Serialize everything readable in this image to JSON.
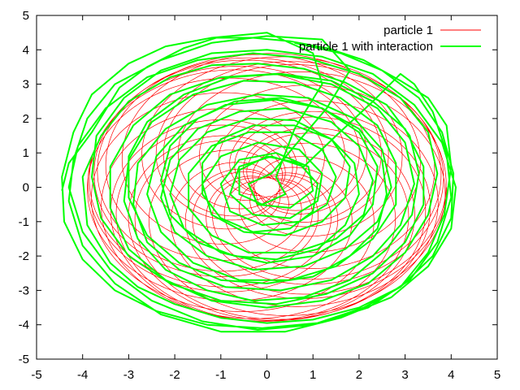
{
  "chart_data": {
    "type": "line",
    "title": "",
    "xlabel": "",
    "ylabel": "",
    "xlim": [
      -5,
      5
    ],
    "ylim": [
      -5,
      5
    ],
    "xticks": [
      "-5",
      "-4",
      "-3",
      "-2",
      "-1",
      "0",
      "1",
      "2",
      "3",
      "4",
      "5"
    ],
    "yticks": [
      "-5",
      "-4",
      "-3",
      "-2",
      "-1",
      "0",
      "1",
      "2",
      "3",
      "4",
      "5"
    ],
    "grid": false,
    "legend_position": "top-right",
    "series": [
      {
        "name": "particle 1",
        "color": "#ff0000",
        "style": "thin rosette orbit",
        "params": {
          "ax": 3.9,
          "ay": 3.9,
          "bx": 0.25,
          "by": 0.25,
          "fast": 19.5,
          "slow": 1.0,
          "turns": 32
        }
      },
      {
        "name": "particle 1 with interaction",
        "color": "#00ff00",
        "style": "thick irregular orbit",
        "points": [
          [
            -4.45,
            -0.1
          ],
          [
            -4.3,
            0.7
          ],
          [
            -3.8,
            1.6
          ],
          [
            -3.2,
            2.9
          ],
          [
            -2.6,
            3.5
          ],
          [
            -1.8,
            4.05
          ],
          [
            -1.1,
            4.35
          ],
          [
            -0.3,
            4.35
          ],
          [
            0.5,
            4.25
          ],
          [
            1.3,
            4.05
          ],
          [
            2.1,
            3.7
          ],
          [
            2.9,
            3.1
          ],
          [
            3.5,
            2.6
          ],
          [
            3.9,
            1.8
          ],
          [
            4.0,
            0.6
          ],
          [
            3.85,
            -0.8
          ],
          [
            3.5,
            -1.9
          ],
          [
            2.9,
            -2.9
          ],
          [
            2.0,
            -3.5
          ],
          [
            1.0,
            -3.85
          ],
          [
            0.0,
            -3.95
          ],
          [
            -1.0,
            -3.8
          ],
          [
            -2.0,
            -3.4
          ],
          [
            -2.8,
            -2.9
          ],
          [
            -3.4,
            -2.2
          ],
          [
            -3.9,
            -1.1
          ],
          [
            -4.0,
            0.3
          ],
          [
            -3.6,
            1.5
          ],
          [
            -3.0,
            2.5
          ],
          [
            -2.1,
            3.2
          ],
          [
            -1.2,
            3.55
          ],
          [
            -0.2,
            3.6
          ],
          [
            0.8,
            3.45
          ],
          [
            1.7,
            3.05
          ],
          [
            2.6,
            2.4
          ],
          [
            3.1,
            1.5
          ],
          [
            3.3,
            0.4
          ],
          [
            3.15,
            -0.8
          ],
          [
            2.6,
            -1.8
          ],
          [
            1.8,
            -2.7
          ],
          [
            0.8,
            -3.2
          ],
          [
            -0.3,
            -3.3
          ],
          [
            -1.3,
            -3.0
          ],
          [
            -2.2,
            -2.4
          ],
          [
            -2.8,
            -1.5
          ],
          [
            -3.1,
            -0.4
          ],
          [
            -3.0,
            0.8
          ],
          [
            -2.5,
            1.9
          ],
          [
            -1.6,
            2.7
          ],
          [
            -0.5,
            3.1
          ],
          [
            0.6,
            3.05
          ],
          [
            1.6,
            2.6
          ],
          [
            2.4,
            1.8
          ],
          [
            2.8,
            0.7
          ],
          [
            2.8,
            -0.5
          ],
          [
            2.3,
            -1.5
          ],
          [
            1.5,
            -2.3
          ],
          [
            0.5,
            -2.7
          ],
          [
            -0.6,
            -2.7
          ],
          [
            -1.6,
            -2.2
          ],
          [
            -2.3,
            -1.3
          ],
          [
            -2.6,
            -0.2
          ],
          [
            -2.4,
            0.9
          ],
          [
            -1.8,
            1.8
          ],
          [
            -0.9,
            2.4
          ],
          [
            0.2,
            2.55
          ],
          [
            1.2,
            2.3
          ],
          [
            2.0,
            1.6
          ],
          [
            2.4,
            0.6
          ],
          [
            2.3,
            -0.5
          ],
          [
            1.8,
            -1.4
          ],
          [
            1.0,
            -2.0
          ],
          [
            0.0,
            -2.2
          ],
          [
            -1.0,
            -1.9
          ],
          [
            -1.8,
            -1.2
          ],
          [
            -2.1,
            -0.2
          ],
          [
            -1.9,
            0.8
          ],
          [
            -1.3,
            1.6
          ],
          [
            -0.4,
            2.0
          ],
          [
            0.6,
            1.95
          ],
          [
            1.4,
            1.4
          ],
          [
            1.8,
            0.6
          ],
          [
            1.7,
            -0.3
          ],
          [
            1.2,
            -1.0
          ],
          [
            0.4,
            -1.4
          ],
          [
            -0.5,
            -1.3
          ],
          [
            -1.2,
            -0.8
          ],
          [
            -1.4,
            0.1
          ],
          [
            -1.0,
            0.9
          ],
          [
            -0.2,
            1.3
          ],
          [
            0.7,
            1.1
          ],
          [
            1.2,
            0.4
          ],
          [
            1.1,
            -0.4
          ],
          [
            0.5,
            -0.9
          ],
          [
            -0.3,
            -0.8
          ],
          [
            -0.8,
            -0.2
          ],
          [
            -0.6,
            0.6
          ],
          [
            0.1,
            0.9
          ],
          [
            0.8,
            0.6
          ],
          [
            1.5,
            1.5
          ],
          [
            2.3,
            2.5
          ],
          [
            2.9,
            3.3
          ],
          [
            3.2,
            3.0
          ],
          [
            3.6,
            2.2
          ],
          [
            3.9,
            1.0
          ],
          [
            4.0,
            -0.3
          ],
          [
            3.7,
            -1.6
          ],
          [
            3.1,
            -2.7
          ],
          [
            2.2,
            -3.5
          ],
          [
            1.0,
            -4.0
          ],
          [
            -0.2,
            -4.15
          ],
          [
            -1.4,
            -3.9
          ],
          [
            -2.5,
            -3.3
          ],
          [
            -3.4,
            -2.4
          ],
          [
            -4.0,
            -1.3
          ],
          [
            -4.3,
            0.0
          ],
          [
            -4.1,
            1.2
          ],
          [
            -3.5,
            2.3
          ],
          [
            -2.6,
            3.2
          ],
          [
            -1.5,
            3.7
          ],
          [
            -0.3,
            3.9
          ],
          [
            0.9,
            3.75
          ],
          [
            2.0,
            3.3
          ],
          [
            2.9,
            2.6
          ],
          [
            3.5,
            1.6
          ],
          [
            3.7,
            0.4
          ],
          [
            3.5,
            -0.8
          ],
          [
            3.0,
            -1.9
          ],
          [
            2.2,
            -2.8
          ],
          [
            1.2,
            -3.3
          ],
          [
            0.0,
            -3.5
          ],
          [
            -1.2,
            -3.3
          ],
          [
            -2.2,
            -2.7
          ],
          [
            -3.0,
            -1.8
          ],
          [
            -3.4,
            -0.6
          ],
          [
            -3.4,
            0.6
          ],
          [
            -2.9,
            1.8
          ],
          [
            -2.1,
            2.7
          ],
          [
            -1.0,
            3.2
          ],
          [
            0.2,
            3.3
          ],
          [
            1.4,
            3.0
          ],
          [
            2.4,
            2.3
          ],
          [
            3.0,
            1.3
          ],
          [
            3.2,
            0.1
          ],
          [
            2.9,
            -1.1
          ],
          [
            2.3,
            -2.0
          ],
          [
            1.4,
            -2.7
          ],
          [
            0.3,
            -3.0
          ],
          [
            -0.9,
            -2.9
          ],
          [
            -1.9,
            -2.4
          ],
          [
            -2.6,
            -1.6
          ],
          [
            -2.9,
            -0.5
          ],
          [
            -2.8,
            0.7
          ],
          [
            -2.2,
            1.7
          ],
          [
            -1.3,
            2.4
          ],
          [
            -0.2,
            2.7
          ],
          [
            0.9,
            2.6
          ],
          [
            1.9,
            2.0
          ],
          [
            2.5,
            1.1
          ],
          [
            2.7,
            0.0
          ],
          [
            2.4,
            -1.0
          ],
          [
            1.7,
            -1.8
          ],
          [
            0.8,
            -2.3
          ],
          [
            -0.3,
            -2.4
          ],
          [
            -1.3,
            -2.0
          ],
          [
            -2.0,
            -1.3
          ],
          [
            -2.3,
            -0.3
          ],
          [
            -2.1,
            0.8
          ],
          [
            -1.5,
            1.7
          ],
          [
            -0.6,
            2.2
          ],
          [
            0.4,
            2.3
          ],
          [
            1.4,
            1.9
          ],
          [
            2.0,
            1.2
          ],
          [
            2.3,
            0.2
          ],
          [
            2.1,
            -0.8
          ],
          [
            1.5,
            -1.5
          ],
          [
            0.6,
            -1.9
          ],
          [
            -0.4,
            -1.9
          ],
          [
            -1.2,
            -1.4
          ],
          [
            -1.7,
            -0.6
          ],
          [
            -1.7,
            0.4
          ],
          [
            -1.2,
            1.2
          ],
          [
            -0.4,
            1.6
          ],
          [
            0.5,
            1.6
          ],
          [
            1.2,
            1.1
          ],
          [
            1.5,
            0.3
          ],
          [
            1.3,
            -0.5
          ],
          [
            0.7,
            -1.0
          ],
          [
            -0.1,
            -1.1
          ],
          [
            -0.8,
            -0.7
          ],
          [
            -1.0,
            0.1
          ],
          [
            -0.6,
            0.8
          ],
          [
            0.2,
            1.0
          ],
          [
            0.9,
            0.6
          ],
          [
            1.0,
            -0.1
          ],
          [
            0.5,
            -0.6
          ],
          [
            -0.2,
            -0.5
          ],
          [
            -0.4,
            0.1
          ],
          [
            0.1,
            0.4
          ],
          [
            0.6,
            1.2
          ],
          [
            1.3,
            2.3
          ],
          [
            1.8,
            3.4
          ],
          [
            1.2,
            4.3
          ],
          [
            0.0,
            4.4
          ],
          [
            -1.2,
            4.2
          ],
          [
            -2.3,
            3.7
          ],
          [
            -3.3,
            3.0
          ],
          [
            -3.9,
            2.0
          ],
          [
            -4.2,
            0.8
          ],
          [
            -4.3,
            -0.4
          ],
          [
            -4.0,
            -1.7
          ],
          [
            -3.3,
            -2.8
          ],
          [
            -2.3,
            -3.7
          ],
          [
            -1.0,
            -4.2
          ],
          [
            0.4,
            -4.2
          ],
          [
            1.6,
            -3.8
          ],
          [
            2.7,
            -3.2
          ],
          [
            3.5,
            -2.3
          ],
          [
            4.0,
            -1.2
          ],
          [
            4.1,
            0.0
          ],
          [
            3.8,
            1.3
          ],
          [
            3.2,
            2.4
          ],
          [
            2.3,
            3.3
          ],
          [
            1.2,
            3.8
          ],
          [
            0.0,
            4.0
          ],
          [
            -1.2,
            3.9
          ],
          [
            -2.3,
            3.4
          ],
          [
            -3.1,
            2.6
          ],
          [
            -3.7,
            1.5
          ],
          [
            -3.8,
            0.3
          ],
          [
            -3.6,
            -0.9
          ],
          [
            -3.0,
            -2.0
          ],
          [
            -2.1,
            -2.8
          ],
          [
            -1.0,
            -3.3
          ],
          [
            0.2,
            -3.4
          ],
          [
            1.3,
            -3.1
          ],
          [
            2.3,
            -2.5
          ],
          [
            3.0,
            -1.6
          ],
          [
            3.4,
            -0.5
          ],
          [
            3.4,
            0.6
          ],
          [
            3.0,
            1.7
          ],
          [
            2.3,
            2.5
          ],
          [
            1.4,
            3.1
          ],
          [
            0.3,
            3.3
          ],
          [
            -0.8,
            3.2
          ],
          [
            -1.8,
            2.7
          ],
          [
            -2.6,
            1.9
          ],
          [
            -3.0,
            0.9
          ],
          [
            -3.0,
            -0.3
          ],
          [
            -2.6,
            -1.4
          ],
          [
            -1.9,
            -2.2
          ],
          [
            -1.0,
            -2.7
          ],
          [
            0.0,
            -2.8
          ],
          [
            1.0,
            -2.6
          ],
          [
            1.8,
            -2.0
          ],
          [
            2.4,
            -1.2
          ],
          [
            2.6,
            -0.2
          ],
          [
            2.5,
            0.8
          ],
          [
            2.0,
            1.7
          ],
          [
            1.2,
            2.3
          ],
          [
            0.3,
            2.6
          ],
          [
            -0.7,
            2.5
          ],
          [
            -1.5,
            2.0
          ],
          [
            -2.1,
            1.2
          ],
          [
            -2.3,
            0.2
          ],
          [
            -2.1,
            -0.8
          ],
          [
            -1.5,
            -1.6
          ],
          [
            -0.7,
            -2.0
          ],
          [
            0.2,
            -2.1
          ],
          [
            1.1,
            -1.8
          ],
          [
            1.7,
            -1.1
          ],
          [
            2.0,
            -0.2
          ],
          [
            1.9,
            0.7
          ],
          [
            1.4,
            1.4
          ],
          [
            0.6,
            1.8
          ],
          [
            -0.3,
            1.8
          ],
          [
            -1.0,
            1.4
          ],
          [
            -1.4,
            0.7
          ],
          [
            -1.4,
            -0.2
          ],
          [
            -1.0,
            -0.9
          ],
          [
            -0.3,
            -1.3
          ],
          [
            0.5,
            -1.2
          ],
          [
            1.0,
            -0.7
          ],
          [
            1.1,
            0.1
          ],
          [
            0.7,
            0.7
          ],
          [
            0.0,
            0.9
          ],
          [
            -0.6,
            0.5
          ],
          [
            -0.6,
            -0.2
          ],
          [
            -0.1,
            -0.5
          ],
          [
            0.4,
            -0.2
          ],
          [
            0.2,
            0.3
          ],
          [
            0.6,
            1.7
          ],
          [
            1.2,
            3.0
          ],
          [
            1.0,
            3.9
          ],
          [
            0.0,
            4.5
          ],
          [
            -1.2,
            4.35
          ],
          [
            -2.2,
            4.1
          ],
          [
            -3.0,
            3.6
          ],
          [
            -3.8,
            2.7
          ],
          [
            -4.2,
            1.6
          ],
          [
            -4.45,
            0.3
          ],
          [
            -4.4,
            -1.0
          ],
          [
            -4.0,
            -2.1
          ],
          [
            -3.3,
            -3.0
          ],
          [
            -2.4,
            -3.6
          ],
          [
            -1.3,
            -4.0
          ],
          [
            -0.1,
            -4.1
          ],
          [
            1.1,
            -3.95
          ],
          [
            2.1,
            -3.5
          ],
          [
            2.9,
            -2.9
          ],
          [
            3.6,
            -2.0
          ],
          [
            4.0,
            -0.9
          ],
          [
            4.05,
            0.4
          ],
          [
            3.8,
            1.6
          ],
          [
            3.3,
            2.6
          ],
          [
            2.5,
            3.4
          ],
          [
            1.6,
            3.9
          ],
          [
            0.6,
            4.2
          ]
        ]
      }
    ]
  }
}
